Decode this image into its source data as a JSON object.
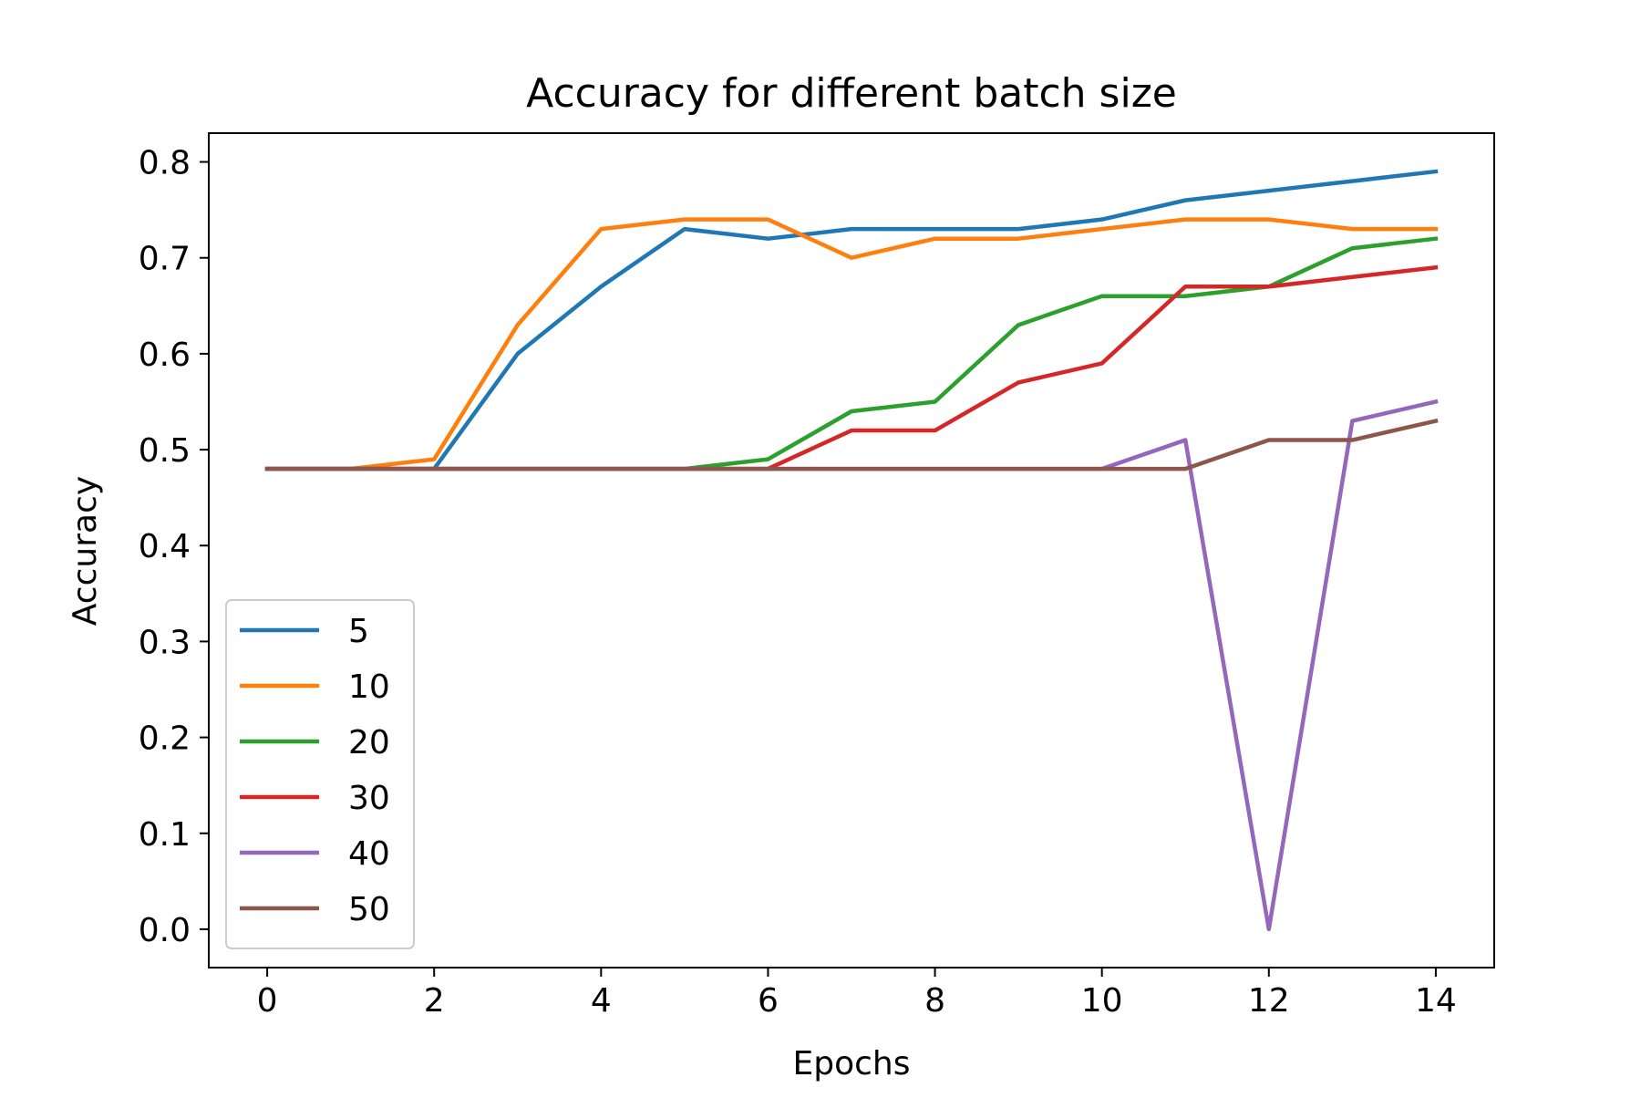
{
  "chart_data": {
    "type": "line",
    "title": "Accuracy for different batch size",
    "xlabel": "Epochs",
    "ylabel": "Accuracy",
    "xlim": [
      -0.7,
      14.7
    ],
    "ylim": [
      -0.04,
      0.83
    ],
    "xticks": [
      0,
      2,
      4,
      6,
      8,
      10,
      12,
      14
    ],
    "yticks": [
      0.0,
      0.1,
      0.2,
      0.3,
      0.4,
      0.5,
      0.6,
      0.7,
      0.8
    ],
    "xtick_labels": [
      "0",
      "2",
      "4",
      "6",
      "8",
      "10",
      "12",
      "14"
    ],
    "ytick_labels": [
      "0.0",
      "0.1",
      "0.2",
      "0.3",
      "0.4",
      "0.5",
      "0.6",
      "0.7",
      "0.8"
    ],
    "grid": false,
    "legend_position": "lower-left",
    "x": [
      0,
      1,
      2,
      3,
      4,
      5,
      6,
      7,
      8,
      9,
      10,
      11,
      12,
      13,
      14
    ],
    "series": [
      {
        "name": "5",
        "color": "#1f77b4",
        "values": [
          0.48,
          0.48,
          0.48,
          0.6,
          0.67,
          0.73,
          0.72,
          0.73,
          0.73,
          0.73,
          0.74,
          0.76,
          0.77,
          0.78,
          0.79
        ]
      },
      {
        "name": "10",
        "color": "#ff7f0e",
        "values": [
          0.48,
          0.48,
          0.49,
          0.63,
          0.73,
          0.74,
          0.74,
          0.7,
          0.72,
          0.72,
          0.73,
          0.74,
          0.74,
          0.73,
          0.73
        ]
      },
      {
        "name": "20",
        "color": "#2ca02c",
        "values": [
          0.48,
          0.48,
          0.48,
          0.48,
          0.48,
          0.48,
          0.49,
          0.54,
          0.55,
          0.63,
          0.66,
          0.66,
          0.67,
          0.71,
          0.72
        ]
      },
      {
        "name": "30",
        "color": "#d62728",
        "values": [
          0.48,
          0.48,
          0.48,
          0.48,
          0.48,
          0.48,
          0.48,
          0.52,
          0.52,
          0.57,
          0.59,
          0.67,
          0.67,
          0.68,
          0.69
        ]
      },
      {
        "name": "40",
        "color": "#9467bd",
        "values": [
          0.48,
          0.48,
          0.48,
          0.48,
          0.48,
          0.48,
          0.48,
          0.48,
          0.48,
          0.48,
          0.48,
          0.51,
          0.0,
          0.53,
          0.55
        ]
      },
      {
        "name": "50",
        "color": "#8c564b",
        "values": [
          0.48,
          0.48,
          0.48,
          0.48,
          0.48,
          0.48,
          0.48,
          0.48,
          0.48,
          0.48,
          0.48,
          0.48,
          0.51,
          0.51,
          0.53
        ]
      }
    ]
  }
}
